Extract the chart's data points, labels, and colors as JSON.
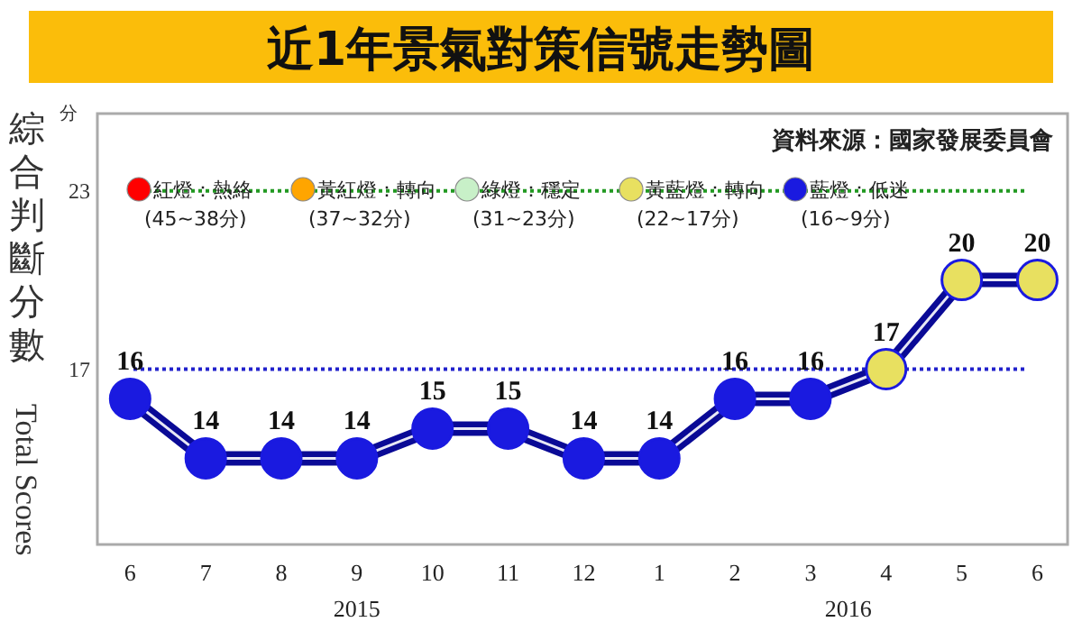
{
  "chart_data": {
    "type": "line",
    "title": "近1年景氣對策信號走勢圖",
    "ylabel": "綜合判斷分數 Total Scores",
    "annotations": [
      "資料來源：國家發展委員會",
      "分",
      "2015",
      "2016"
    ],
    "x": [
      "2015-06",
      "2015-07",
      "2015-08",
      "2015-09",
      "2015-10",
      "2015-11",
      "2015-12",
      "2016-01",
      "2016-02",
      "2016-03",
      "2016-04",
      "2016-05",
      "2016-06"
    ],
    "xlim": [
      "2015-05-18",
      "2016-06-13"
    ],
    "xticks": [
      {
        "value": "2015-06",
        "label": "6"
      },
      {
        "value": "2015-07",
        "label": "7"
      },
      {
        "value": "2015-08",
        "label": "8"
      },
      {
        "value": "2015-09",
        "label": "9"
      },
      {
        "value": "2015-10",
        "label": "10"
      },
      {
        "value": "2015-11",
        "label": "11"
      },
      {
        "value": "2015-12",
        "label": "12"
      },
      {
        "value": "2016-01",
        "label": "1"
      },
      {
        "value": "2016-02",
        "label": "2"
      },
      {
        "value": "2016-03",
        "label": "3"
      },
      {
        "value": "2016-04",
        "label": "4"
      },
      {
        "value": "2016-05",
        "label": "5"
      },
      {
        "value": "2016-06",
        "label": "6"
      }
    ],
    "ylim": [
      11.1,
      25.6
    ],
    "yticks": [
      17,
      23
    ],
    "series": [
      {
        "color": "#0a0a96",
        "colors": [
          "#1a1ae0",
          "#1a1ae0",
          "#1a1ae0",
          "#1a1ae0",
          "#1a1ae0",
          "#1a1ae0",
          "#1a1ae0",
          "#1a1ae0",
          "#1a1ae0",
          "#1a1ae0",
          "#e8e060",
          "#e8e060",
          "#e8e060"
        ],
        "values": [
          16,
          14,
          14,
          14,
          15,
          15,
          14,
          14,
          16,
          16,
          17,
          20,
          20
        ]
      },
      {
        "type": "scatter",
        "name": "紅燈：熱絡\n(45~38分)",
        "color": "#ff0000",
        "values": [
          null,
          null,
          null,
          null,
          null,
          null,
          null,
          null,
          null,
          null,
          null,
          null,
          null
        ]
      },
      {
        "type": "scatter",
        "name": "黃紅燈：轉向\n(37~32分)",
        "color": "#ffa500",
        "values": [
          null,
          null,
          null,
          null,
          null,
          null,
          null,
          null,
          null,
          null,
          null,
          null,
          null
        ]
      },
      {
        "type": "scatter",
        "name": "綠燈：穩定\n(31~23分)",
        "color": "#c8f0c8",
        "values": [
          null,
          null,
          null,
          null,
          null,
          null,
          null,
          null,
          null,
          null,
          null,
          null,
          null
        ]
      },
      {
        "type": "scatter",
        "name": "黃藍燈：轉向\n(22~17分)",
        "color": "#e8e060",
        "values": [
          null,
          null,
          null,
          null,
          null,
          null,
          null,
          null,
          null,
          null,
          null,
          null,
          null
        ]
      },
      {
        "type": "scatter",
        "name": "藍燈：低迷\n(16~9分)",
        "color": "#1a1ae0",
        "values": [
          null,
          null,
          null,
          null,
          null,
          null,
          null,
          null,
          null,
          null,
          null,
          null,
          null
        ]
      }
    ],
    "ref_lines": [
      {
        "axis": "y",
        "value": 23,
        "color": "#229922",
        "line_style": "dotted"
      },
      {
        "axis": "y",
        "value": 17,
        "color": "#2222cc",
        "line_style": "dotted"
      }
    ],
    "data_labels": true,
    "legend": "top left",
    "marker": "circle",
    "grid": false
  }
}
